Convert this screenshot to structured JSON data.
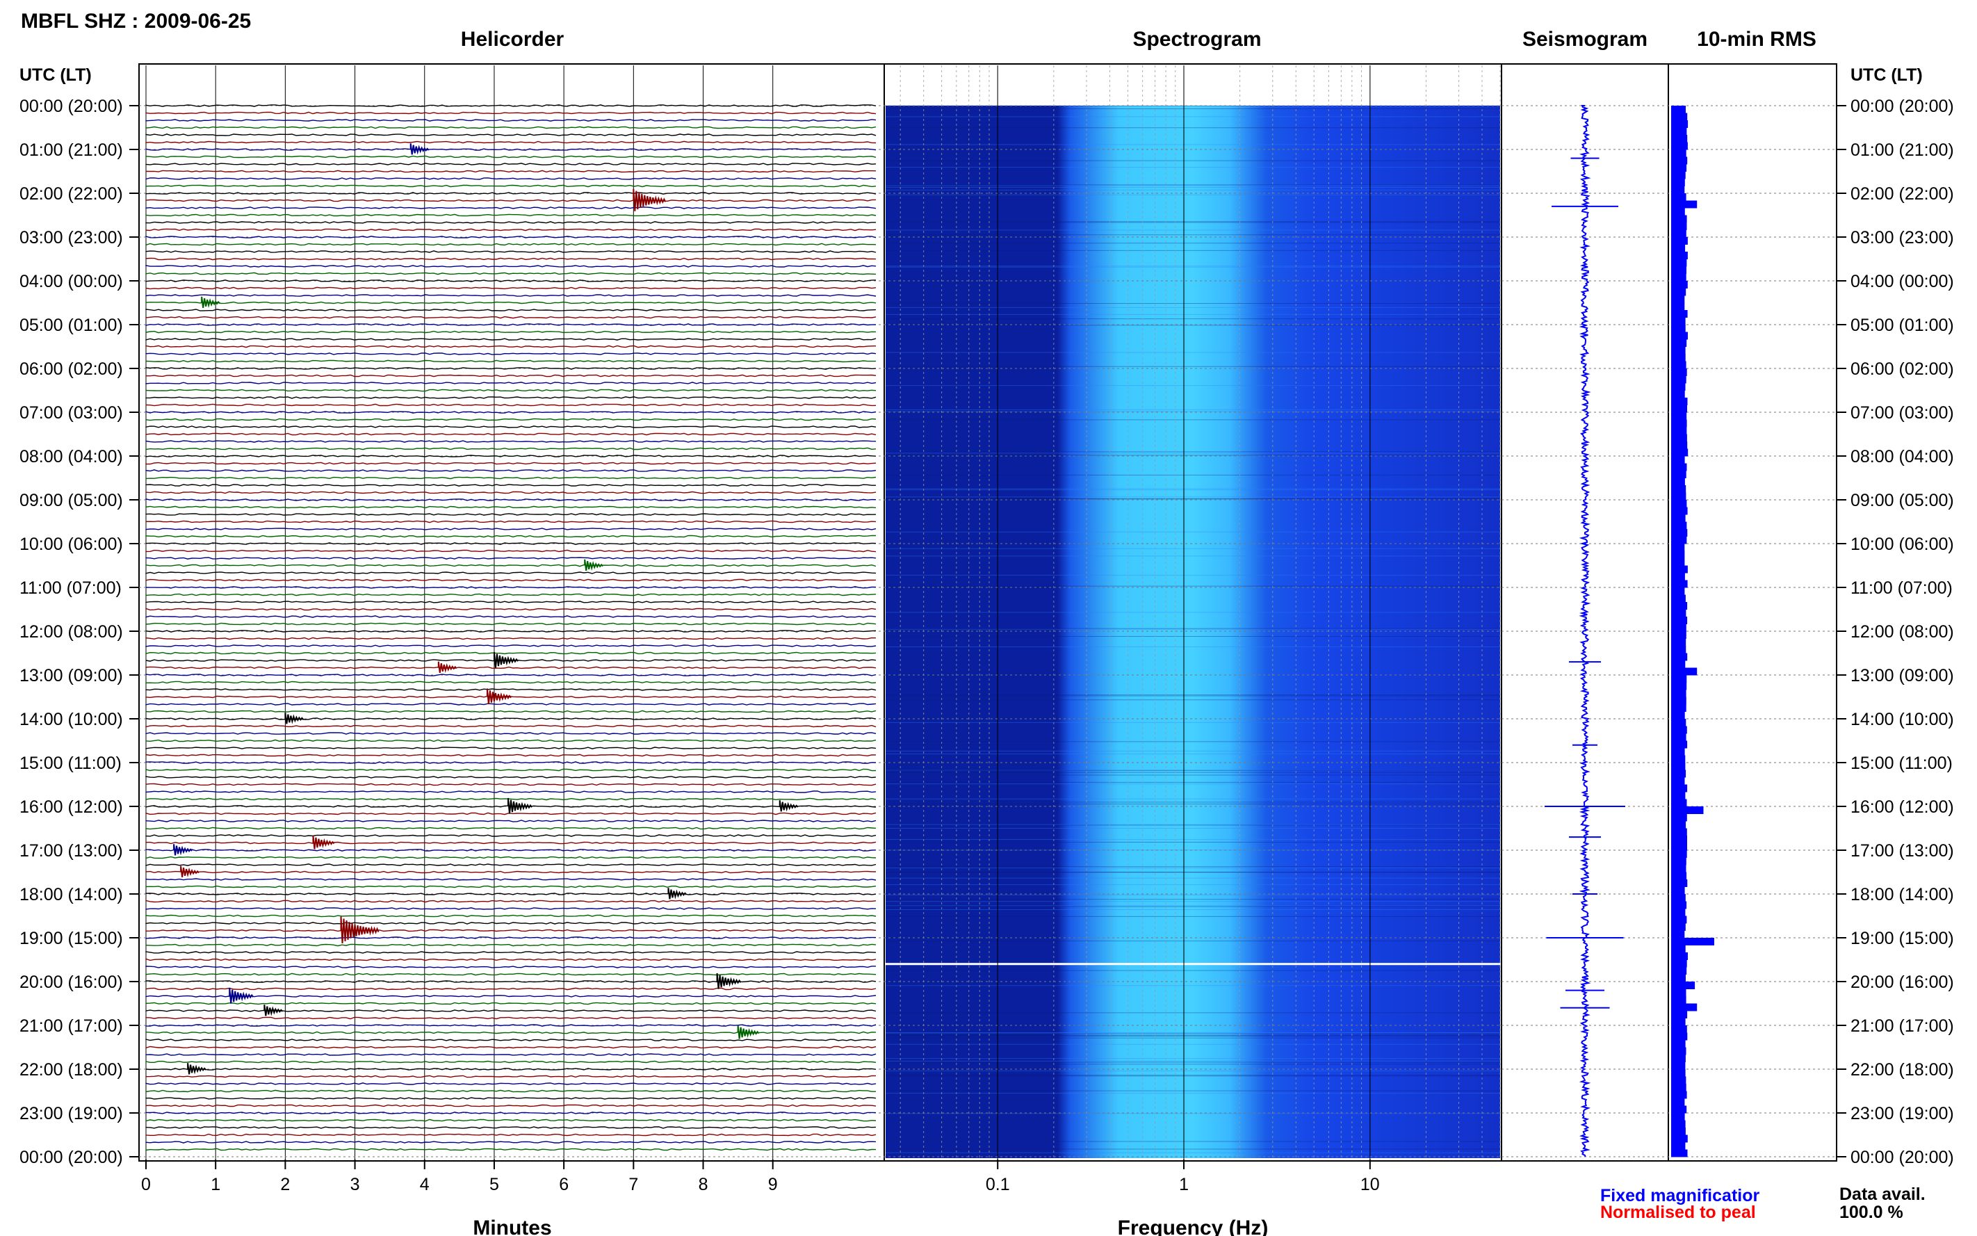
{
  "header": {
    "station_title": "MBFL SHZ : 2009-06-25"
  },
  "panels": {
    "helicorder": "Helicorder",
    "spectrogram": "Spectrogram",
    "seismogram": "Seismogram",
    "rms": "10-min RMS"
  },
  "axes": {
    "time_label_left": "UTC (LT)",
    "time_label_right": "UTC (LT)",
    "x_minutes_label": "Minutes",
    "x_frequency_label": "Frequency (Hz)"
  },
  "time_ticks": [
    "00:00 (20:00)",
    "01:00 (21:00)",
    "02:00 (22:00)",
    "03:00 (23:00)",
    "04:00 (00:00)",
    "05:00 (01:00)",
    "06:00 (02:00)",
    "07:00 (03:00)",
    "08:00 (04:00)",
    "09:00 (05:00)",
    "10:00 (06:00)",
    "11:00 (07:00)",
    "12:00 (08:00)",
    "13:00 (09:00)",
    "14:00 (10:00)",
    "15:00 (11:00)",
    "16:00 (12:00)",
    "17:00 (13:00)",
    "18:00 (14:00)",
    "19:00 (15:00)",
    "20:00 (16:00)",
    "21:00 (17:00)",
    "22:00 (18:00)",
    "23:00 (19:00)",
    "00:00 (20:00)"
  ],
  "minute_ticks": [
    "0",
    "1",
    "2",
    "3",
    "4",
    "5",
    "6",
    "7",
    "8",
    "9"
  ],
  "frequency_ticks": [
    "0.1",
    "1",
    "10"
  ],
  "legend": {
    "fixed": "Fixed magnificatior",
    "normalised": "Normalised to peal",
    "data_avail_label": "Data avail.",
    "data_avail_value": "100.0 %"
  },
  "colors": {
    "trace_black": "#000000",
    "trace_red": "#8b0000",
    "trace_blue": "#00008b",
    "trace_green": "#006400",
    "spec_dark": "#0a1f9e",
    "spec_mid": "#1646e8",
    "spec_bright": "#3fc8ff",
    "seismo": "#0000ff",
    "rms_bar": "#0000ff",
    "legend_blue": "#0000ff",
    "legend_red": "#ff0000"
  },
  "chart_data": [
    {
      "type": "line",
      "title": "Helicorder",
      "xlabel": "Minutes",
      "xlim": [
        0,
        10
      ],
      "ylim_hours": [
        0,
        24
      ],
      "rows_per_hour": 6,
      "trace_color_cycle": [
        "black",
        "red",
        "blue",
        "green"
      ],
      "events": [
        {
          "hour": 1.0,
          "minute": 3.8,
          "amp": 0.3
        },
        {
          "hour": 2.17,
          "minute": 7.0,
          "amp": 0.8
        },
        {
          "hour": 4.5,
          "minute": 0.8,
          "amp": 0.3
        },
        {
          "hour": 10.5,
          "minute": 6.3,
          "amp": 0.3
        },
        {
          "hour": 12.67,
          "minute": 5.0,
          "amp": 0.5
        },
        {
          "hour": 12.83,
          "minute": 4.2,
          "amp": 0.3
        },
        {
          "hour": 13.5,
          "minute": 4.9,
          "amp": 0.5
        },
        {
          "hour": 14.0,
          "minute": 2.0,
          "amp": 0.3
        },
        {
          "hour": 16.0,
          "minute": 5.2,
          "amp": 0.5
        },
        {
          "hour": 16.0,
          "minute": 9.1,
          "amp": 0.3
        },
        {
          "hour": 16.83,
          "minute": 2.4,
          "amp": 0.4
        },
        {
          "hour": 17.0,
          "minute": 0.4,
          "amp": 0.3
        },
        {
          "hour": 17.5,
          "minute": 0.5,
          "amp": 0.3
        },
        {
          "hour": 18.0,
          "minute": 7.5,
          "amp": 0.3
        },
        {
          "hour": 18.83,
          "minute": 2.8,
          "amp": 1.0
        },
        {
          "hour": 20.0,
          "minute": 8.2,
          "amp": 0.5
        },
        {
          "hour": 20.33,
          "minute": 1.2,
          "amp": 0.5
        },
        {
          "hour": 20.67,
          "minute": 1.7,
          "amp": 0.3
        },
        {
          "hour": 21.17,
          "minute": 8.5,
          "amp": 0.4
        },
        {
          "hour": 22.0,
          "minute": 0.6,
          "amp": 0.3
        }
      ]
    },
    {
      "type": "heatmap",
      "title": "Spectrogram",
      "xlabel": "Frequency (Hz)",
      "x_scale": "log",
      "xlim": [
        0.025,
        50
      ],
      "ylim_hours": [
        0,
        24
      ],
      "energy_band_hz": [
        0.2,
        2.0
      ],
      "gap_hour": 19.6
    },
    {
      "type": "line",
      "title": "Seismogram",
      "ylim_hours": [
        0,
        24
      ],
      "spikes": [
        {
          "hour": 1.2,
          "amp": 0.25
        },
        {
          "hour": 2.3,
          "amp": 0.8
        },
        {
          "hour": 12.7,
          "amp": 0.3
        },
        {
          "hour": 14.6,
          "amp": 0.2
        },
        {
          "hour": 16.0,
          "amp": 1.0
        },
        {
          "hour": 16.7,
          "amp": 0.3
        },
        {
          "hour": 18.0,
          "amp": 0.2
        },
        {
          "hour": 19.0,
          "amp": 0.95
        },
        {
          "hour": 20.2,
          "amp": 0.4
        },
        {
          "hour": 20.6,
          "amp": 0.55
        }
      ]
    },
    {
      "type": "bar",
      "title": "10-min RMS",
      "ylim_hours": [
        0,
        24
      ],
      "baseline": 0.35,
      "peaks": [
        {
          "hour": 2.2,
          "value": 0.6
        },
        {
          "hour": 12.8,
          "value": 0.6
        },
        {
          "hour": 16.0,
          "value": 0.75
        },
        {
          "hour": 19.0,
          "value": 1.0
        },
        {
          "hour": 20.0,
          "value": 0.55
        },
        {
          "hour": 20.5,
          "value": 0.6
        }
      ]
    }
  ]
}
